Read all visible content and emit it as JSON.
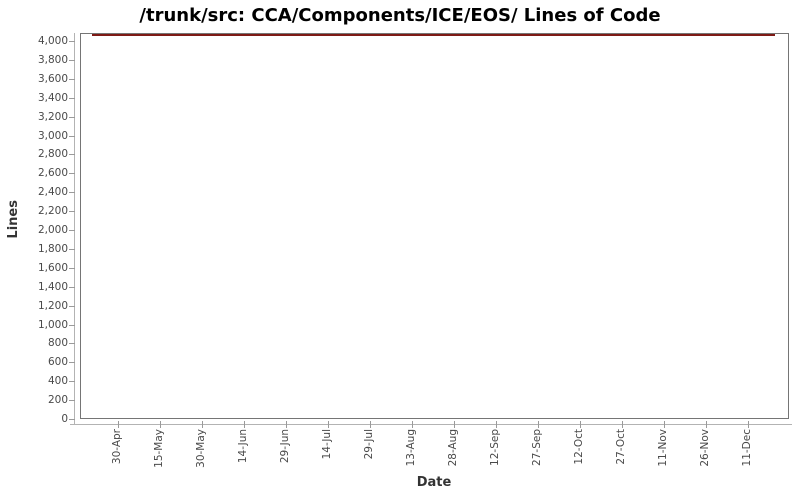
{
  "chart_data": {
    "type": "line",
    "title": "/trunk/src: CCA/Components/ICE/EOS/ Lines of Code",
    "xlabel": "Date",
    "ylabel": "Lines",
    "x_tick_labels": [
      "30-Apr",
      "15-May",
      "30-May",
      "14-Jun",
      "29-Jun",
      "14-Jul",
      "29-Jul",
      "13-Aug",
      "28-Aug",
      "12-Sep",
      "27-Sep",
      "12-Oct",
      "27-Oct",
      "11-Nov",
      "26-Nov",
      "11-Dec"
    ],
    "y_tick_labels": [
      "0",
      "200",
      "400",
      "600",
      "800",
      "1,000",
      "1,200",
      "1,400",
      "1,600",
      "1,800",
      "2,000",
      "2,200",
      "2,400",
      "2,600",
      "2,800",
      "3,000",
      "3,200",
      "3,400",
      "3,600",
      "3,800",
      "4,000"
    ],
    "ylim": [
      0,
      4075
    ],
    "grid": false,
    "legend": "none",
    "series": [
      {
        "name": "Lines of Code",
        "color": "#7e1a15",
        "shape": "constant-horizontal-line",
        "value": 4075,
        "x_range": [
          "30-Apr",
          "11-Dec"
        ]
      }
    ]
  },
  "colors": {
    "background": "#ffffff",
    "plot_background": "#ffffff",
    "plot_border": "#757575",
    "axis_line": "#b3b3b3",
    "tick_mark": "#9a9a9a",
    "tick_label": "#4a4a4a",
    "axis_title": "#333333",
    "title": "#000000",
    "series_red": "#7e1a15"
  }
}
